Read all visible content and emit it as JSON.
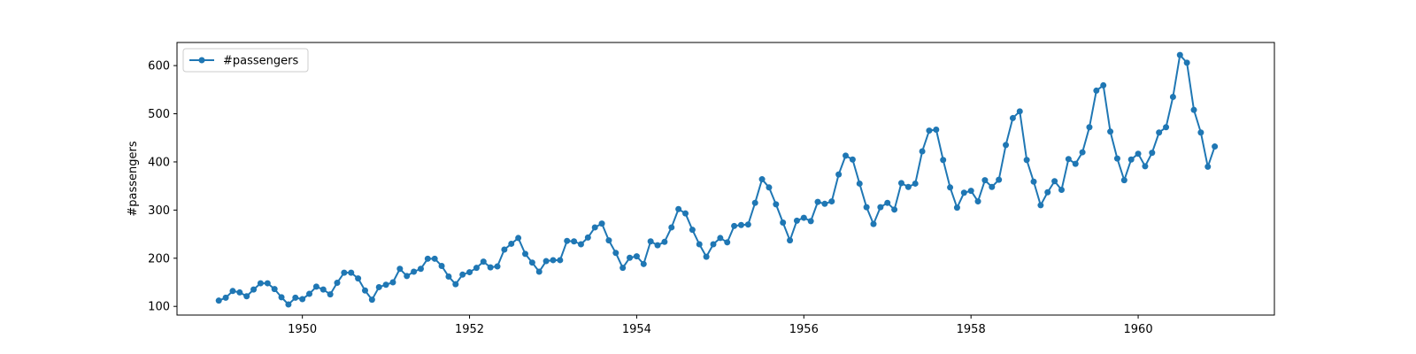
{
  "chart_data": {
    "type": "line",
    "title": "",
    "xlabel": "",
    "ylabel": "#passengers",
    "x_start": "1949-01",
    "x_step": "1 month",
    "xlim": [
      1948.5,
      1961.63
    ],
    "ylim": [
      82,
      648
    ],
    "xticks": [
      1950,
      1952,
      1954,
      1956,
      1958,
      1960
    ],
    "yticks": [
      100,
      200,
      300,
      400,
      500,
      600
    ],
    "grid": false,
    "legend_position": "top-left",
    "series": [
      {
        "name": "#passengers",
        "color": "#1f77b4",
        "marker": "circle",
        "values": [
          112,
          118,
          132,
          129,
          121,
          135,
          148,
          148,
          136,
          119,
          104,
          118,
          115,
          126,
          141,
          135,
          125,
          149,
          170,
          170,
          158,
          133,
          114,
          140,
          145,
          150,
          178,
          163,
          172,
          178,
          199,
          199,
          184,
          162,
          146,
          166,
          171,
          180,
          193,
          181,
          183,
          218,
          230,
          242,
          209,
          191,
          172,
          194,
          196,
          196,
          236,
          235,
          229,
          243,
          264,
          272,
          237,
          211,
          180,
          201,
          204,
          188,
          235,
          227,
          234,
          264,
          302,
          293,
          259,
          229,
          203,
          229,
          242,
          233,
          267,
          269,
          270,
          315,
          364,
          347,
          312,
          274,
          237,
          278,
          284,
          277,
          317,
          313,
          318,
          374,
          413,
          405,
          355,
          306,
          271,
          306,
          315,
          301,
          356,
          348,
          355,
          422,
          465,
          467,
          404,
          347,
          305,
          336,
          340,
          318,
          362,
          348,
          363,
          435,
          491,
          505,
          404,
          359,
          310,
          337,
          360,
          342,
          406,
          396,
          420,
          472,
          548,
          559,
          463,
          407,
          362,
          405,
          417,
          391,
          419,
          461,
          472,
          535,
          622,
          606,
          508,
          461,
          390,
          432
        ]
      }
    ]
  }
}
